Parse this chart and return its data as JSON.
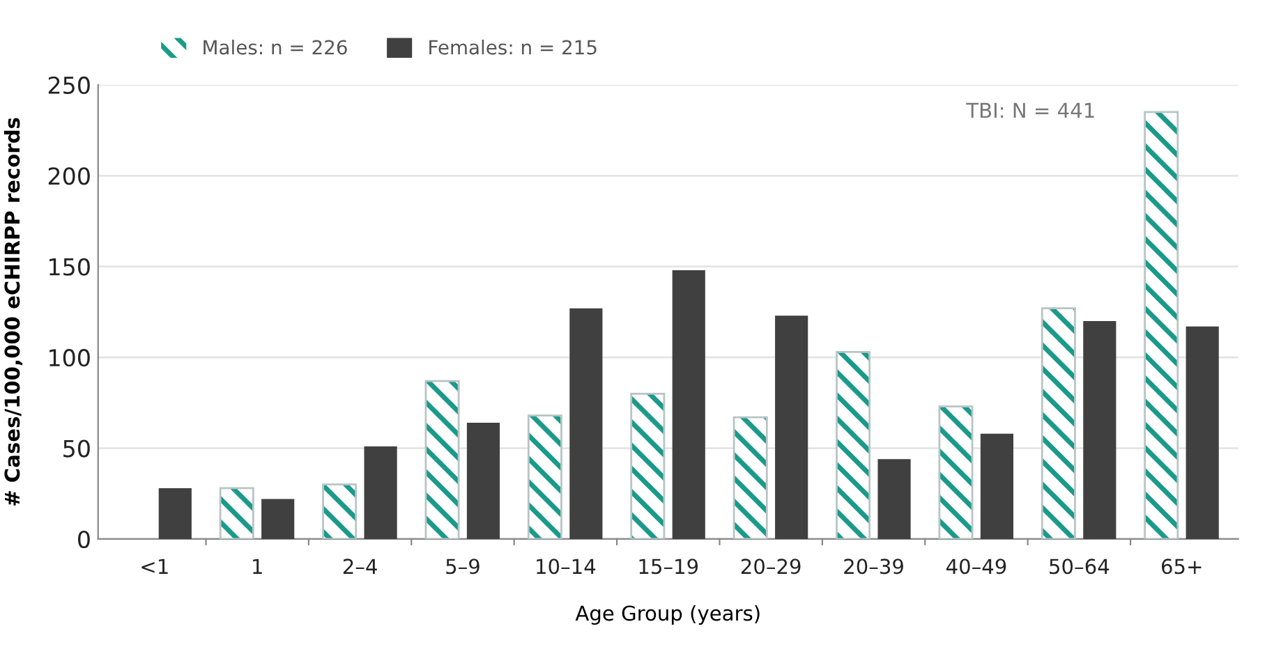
{
  "chart_data": {
    "type": "bar",
    "xlabel": "Age Group (years)",
    "ylabel": "# Cases/100,000 eCHIRPP records",
    "categories": [
      "<1",
      "1",
      "2–4",
      "5–9",
      "10–14",
      "15–19",
      "20–29",
      "20–39",
      "40–49",
      "50–64",
      "65+"
    ],
    "series": [
      {
        "name": "Males: n = 226",
        "color": "#1a9a8a",
        "values": [
          null,
          28,
          30,
          87,
          68,
          80,
          67,
          103,
          73,
          127,
          235
        ]
      },
      {
        "name": "Females: n = 215",
        "color": "#404041",
        "values": [
          28,
          22,
          51,
          64,
          127,
          148,
          123,
          44,
          58,
          120,
          117
        ]
      }
    ],
    "ylim": [
      0,
      250
    ],
    "yticks": [
      0,
      50,
      100,
      150,
      200,
      250
    ],
    "grid": "y",
    "legend": "top left",
    "annotations": [
      "TBI: N = 441"
    ]
  }
}
